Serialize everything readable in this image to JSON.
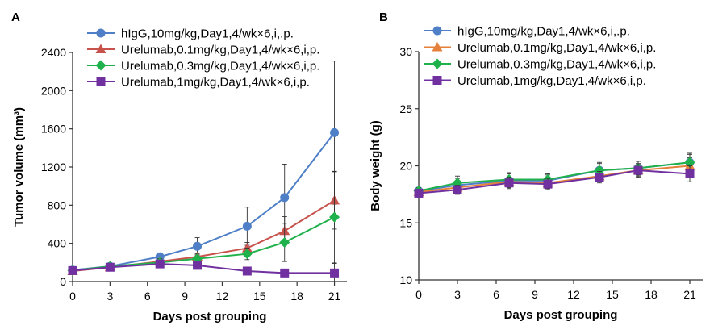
{
  "chart_data": [
    {
      "panel": "A",
      "type": "line",
      "xlabel": "Days post grouping",
      "ylabel": "Tumor volume (mm³)",
      "xlim": [
        0,
        22
      ],
      "ylim": [
        0,
        2400
      ],
      "xticks": [
        0,
        3,
        6,
        9,
        12,
        15,
        18,
        21
      ],
      "yticks": [
        0,
        400,
        800,
        1200,
        1600,
        2000,
        2400
      ],
      "grid": false,
      "legend_position": "top-left",
      "x": [
        0,
        3,
        7,
        10,
        14,
        17,
        21
      ],
      "series": [
        {
          "name": "hIgG,10mg/kg,Day1,4/wk×6,i,.p.",
          "color": "#4f7fc6",
          "marker": "circle",
          "values": [
            120,
            160,
            260,
            370,
            580,
            880,
            1560
          ],
          "errors": [
            15,
            20,
            40,
            90,
            200,
            350,
            750
          ]
        },
        {
          "name": "Urelumab,0.1mg/kg,Day1,4/wk×6,i,p.",
          "color": "#c8524c",
          "marker": "triangle",
          "values": [
            110,
            150,
            210,
            260,
            350,
            530,
            850
          ],
          "errors": [
            15,
            20,
            30,
            40,
            60,
            150,
            300
          ]
        },
        {
          "name": "Urelumab,0.3mg/kg,Day1,4/wk×6,i,p.",
          "color": "#1fb14b",
          "marker": "diamond",
          "values": [
            115,
            160,
            200,
            240,
            290,
            410,
            675
          ],
          "errors": [
            15,
            20,
            30,
            50,
            60,
            200,
            480
          ]
        },
        {
          "name": "Urelumab,1mg/kg,Day1,4/wk×6,i,p.",
          "color": "#7030a0",
          "marker": "square",
          "values": [
            115,
            150,
            185,
            170,
            110,
            90,
            90
          ],
          "errors": [
            10,
            20,
            30,
            40,
            30,
            40,
            100
          ]
        }
      ]
    },
    {
      "panel": "B",
      "type": "line",
      "xlabel": "Days post grouping",
      "ylabel": "Body weight (g)",
      "xlim": [
        0,
        22
      ],
      "ylim": [
        10,
        30
      ],
      "xticks": [
        0,
        3,
        6,
        9,
        12,
        15,
        18,
        21
      ],
      "yticks": [
        10,
        15,
        20,
        25,
        30
      ],
      "grid": false,
      "legend_position": "top-left",
      "x": [
        0,
        3,
        7,
        10,
        14,
        17,
        21
      ],
      "series": [
        {
          "name": "hIgG,10mg/kg,Day1,4/wk×6,i,.p.",
          "color": "#4f7fc6",
          "marker": "circle",
          "values": [
            17.8,
            18.3,
            18.7,
            18.7,
            19.6,
            19.8,
            20.3
          ],
          "errors": [
            0.3,
            0.6,
            0.6,
            0.5,
            0.7,
            0.6,
            0.8
          ]
        },
        {
          "name": "Urelumab,0.1mg/kg,Day1,4/wk×6,i,p.",
          "color": "#e5803a",
          "marker": "triangle",
          "values": [
            17.7,
            18.1,
            18.6,
            18.5,
            19.1,
            19.6,
            20.0
          ],
          "errors": [
            0.3,
            0.5,
            0.5,
            0.5,
            0.5,
            0.5,
            0.7
          ]
        },
        {
          "name": "Urelumab,0.3mg/kg,Day1,4/wk×6,i,p.",
          "color": "#1fb14b",
          "marker": "diamond",
          "values": [
            17.8,
            18.5,
            18.8,
            18.8,
            19.6,
            19.8,
            20.3
          ],
          "errors": [
            0.3,
            0.6,
            0.6,
            0.5,
            0.6,
            0.6,
            0.7
          ]
        },
        {
          "name": "Urelumab,1mg/kg,Day1,4/wk×6,i,p.",
          "color": "#7030a0",
          "marker": "square",
          "values": [
            17.6,
            17.9,
            18.5,
            18.4,
            19.0,
            19.6,
            19.3
          ],
          "errors": [
            0.3,
            0.4,
            0.5,
            0.5,
            0.5,
            0.6,
            0.7
          ]
        }
      ]
    }
  ]
}
